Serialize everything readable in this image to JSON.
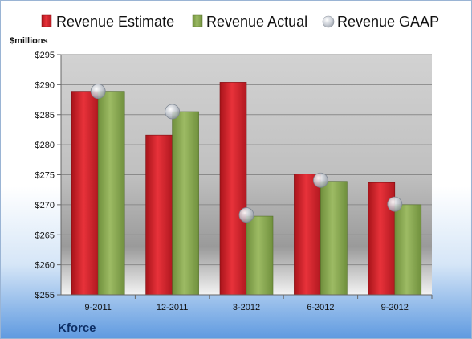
{
  "company": "Kforce",
  "y_unit_label": "$millions",
  "legend": [
    {
      "label": "Revenue Estimate",
      "color": "#e0242b"
    },
    {
      "label": "Revenue Actual",
      "color": "#8fb055"
    },
    {
      "label": "Revenue GAAP",
      "color": "#b8bec9"
    }
  ],
  "chart_data": {
    "type": "bar",
    "categories": [
      "9-2011",
      "12-2011",
      "3-2012",
      "6-2012",
      "9-2012"
    ],
    "series": [
      {
        "name": "Revenue Estimate",
        "kind": "bar",
        "color": "#e0242b",
        "values": [
          288.9,
          281.6,
          290.4,
          275.1,
          273.7
        ]
      },
      {
        "name": "Revenue Actual",
        "kind": "bar",
        "color": "#8fb055",
        "values": [
          288.9,
          285.5,
          268.1,
          273.9,
          270.0
        ]
      },
      {
        "name": "Revenue GAAP",
        "kind": "marker",
        "color": "#b8bec9",
        "values": [
          288.9,
          285.5,
          268.3,
          274.1,
          270.1
        ]
      }
    ],
    "ylim": [
      255,
      295
    ],
    "yticks": [
      "$255",
      "$260",
      "$265",
      "$270",
      "$275",
      "$280",
      "$285",
      "$290",
      "$295"
    ],
    "ytick_values": [
      255,
      260,
      265,
      270,
      275,
      280,
      285,
      290,
      295
    ],
    "ylabel": "$millions",
    "xlabel": "",
    "grid": true,
    "legend_position": "top"
  }
}
